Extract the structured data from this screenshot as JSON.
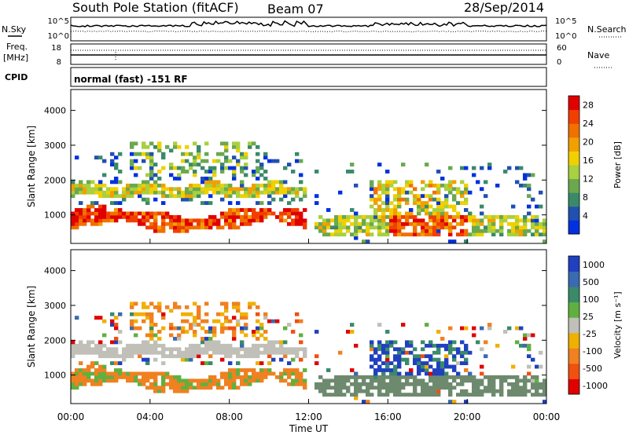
{
  "header": {
    "station": "South Pole Station (fitACF)",
    "beam": "Beam 07",
    "date": "28/Sep/2014"
  },
  "labels": {
    "nsky": "N.Sky",
    "nsearch": "N.Search",
    "freq": "Freq.",
    "mhz": "[MHz]",
    "nave": "Nave",
    "cpid": "CPID",
    "program": "normal (fast) -151 RF"
  },
  "small_panels": {
    "noise_ticks_left": [
      "10^5",
      "10^0"
    ],
    "noise_ticks_right": [
      "10^5",
      "10^0"
    ],
    "freq_ticks_left": [
      "18",
      "8"
    ],
    "nave_ticks_right": [
      "60",
      "0"
    ]
  },
  "chart_data": [
    {
      "type": "heatmap",
      "name": "power",
      "ylabel": "Slant Range [km]",
      "ylim": [
        180,
        4600
      ],
      "yticks": [
        1000,
        2000,
        3000,
        4000
      ],
      "xlim": [
        0,
        24
      ],
      "xticks": [
        "00:00",
        "04:00",
        "08:00",
        "12:00",
        "16:00",
        "20:00",
        "00:00"
      ],
      "colorbar": {
        "label": "Power [dB]",
        "ticks": [
          "4",
          "8",
          "12",
          "16",
          "20",
          "24",
          "28"
        ],
        "colors": [
          "#0030e0",
          "#2050b0",
          "#3a8a6a",
          "#6aa84f",
          "#a8d040",
          "#f0d000",
          "#f0a000",
          "#f07000",
          "#f04000",
          "#e00000"
        ]
      }
    },
    {
      "type": "heatmap",
      "name": "velocity",
      "ylabel": "Slant Range [km]",
      "ylim": [
        180,
        4600
      ],
      "yticks": [
        1000,
        2000,
        3000,
        4000
      ],
      "xlim": [
        0,
        24
      ],
      "xticks": [
        "00:00",
        "04:00",
        "08:00",
        "12:00",
        "16:00",
        "20:00",
        "00:00"
      ],
      "xlabel": "Time UT",
      "colorbar": {
        "label": "Velocity [m s⁻¹]",
        "ticks": [
          "1000",
          "500",
          "100",
          "25",
          "-25",
          "-100",
          "-500",
          "-1000"
        ],
        "colors": [
          "#2040c0",
          "#3a6ab0",
          "#3a8a6a",
          "#60b040",
          "#c0c0b8",
          "#f0b000",
          "#f08020",
          "#f05010",
          "#e00000"
        ]
      }
    }
  ],
  "colors": {
    "ground_scatter": "#6e8a6e"
  }
}
